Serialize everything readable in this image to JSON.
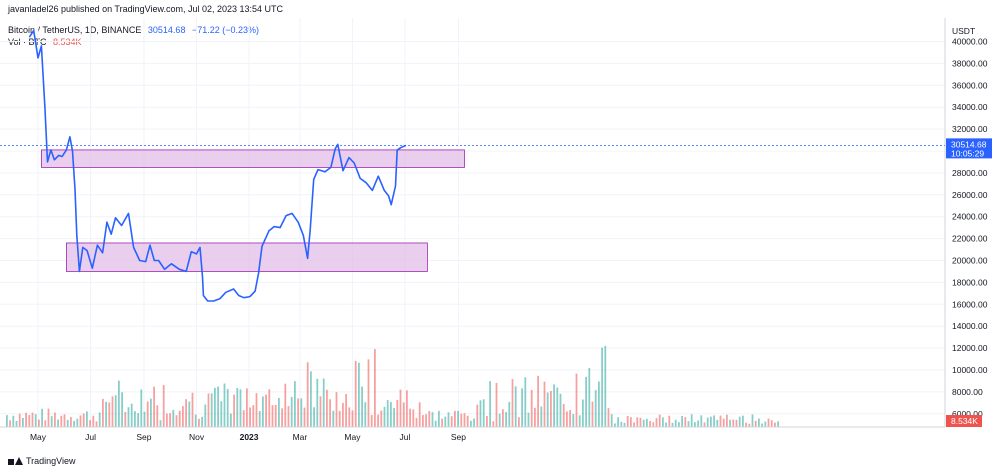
{
  "header": {
    "published": "javanladel26 published on TradingView.com, Jul 02, 2023 13:54 UTC",
    "symbol": "Bitcoin / TetherUS, 1D, BINANCE",
    "price": "30514.68",
    "change": "−71.22 (−0.23%)",
    "volume_label": "Vol · BTC",
    "volume_value": "8.534K"
  },
  "price_tag": {
    "price": "30514.68",
    "countdown": "10:05:29"
  },
  "volume_tag": "8.534K",
  "footer": {
    "brand": "TradingView"
  },
  "colors": {
    "line": "#2962ff",
    "zone_fill": "#e1bee7",
    "zone_border": "#9c27b0",
    "vol_up": "#26a69a",
    "vol_down": "#ef5350",
    "price_tag": "#2962ff",
    "vol_tag": "#ef5350"
  },
  "chart_data": {
    "type": "line",
    "title": "",
    "y_axis": {
      "unit": "USDT",
      "ticks": [
        6000,
        8000,
        10000,
        12000,
        14000,
        16000,
        18000,
        20000,
        22000,
        24000,
        26000,
        28000,
        30000,
        32000,
        34000,
        36000,
        38000,
        40000
      ],
      "range": [
        4000,
        41000
      ]
    },
    "x_axis": {
      "ticks": [
        "May",
        "Jul",
        "Sep",
        "Nov",
        "2023",
        "Mar",
        "May",
        "Jul",
        "Sep"
      ]
    },
    "series": [
      {
        "x": [
          "2022-04-21",
          "2022-04-26",
          "2022-05-01",
          "2022-05-05",
          "2022-05-09",
          "2022-05-12",
          "2022-05-16",
          "2022-05-20",
          "2022-05-25",
          "2022-05-29",
          "2022-06-03",
          "2022-06-07",
          "2022-06-10",
          "2022-06-13",
          "2022-06-15",
          "2022-06-18",
          "2022-06-22",
          "2022-06-27",
          "2022-07-03",
          "2022-07-09",
          "2022-07-15",
          "2022-07-20",
          "2022-07-25",
          "2022-07-30",
          "2022-08-06",
          "2022-08-14",
          "2022-08-20",
          "2022-08-27",
          "2022-09-03",
          "2022-09-08",
          "2022-09-13",
          "2022-09-18",
          "2022-09-25",
          "2022-10-03",
          "2022-10-12",
          "2022-10-20",
          "2022-10-26",
          "2022-11-01",
          "2022-11-05",
          "2022-11-08",
          "2022-11-09",
          "2022-11-14",
          "2022-11-21",
          "2022-11-28",
          "2022-12-05",
          "2022-12-14",
          "2022-12-20",
          "2022-12-26",
          "2023-01-02",
          "2023-01-08",
          "2023-01-12",
          "2023-01-16",
          "2023-01-24",
          "2023-01-30",
          "2023-02-06",
          "2023-02-13",
          "2023-02-20",
          "2023-02-27",
          "2023-03-05",
          "2023-03-10",
          "2023-03-13",
          "2023-03-17",
          "2023-03-22",
          "2023-03-30",
          "2023-04-06",
          "2023-04-11",
          "2023-04-14",
          "2023-04-20",
          "2023-04-27",
          "2023-05-03",
          "2023-05-10",
          "2023-05-17",
          "2023-05-24",
          "2023-05-31",
          "2023-06-07",
          "2023-06-12",
          "2023-06-15",
          "2023-06-20",
          "2023-06-22",
          "2023-06-26",
          "2023-07-02"
        ],
        "y": [
          40400,
          41000,
          38500,
          39600,
          34000,
          29000,
          30100,
          29200,
          29600,
          29500,
          30100,
          31300,
          30000,
          26500,
          22300,
          19000,
          21200,
          20900,
          19300,
          21400,
          20700,
          23500,
          22400,
          23900,
          23200,
          24300,
          21200,
          20000,
          19900,
          21400,
          20000,
          20000,
          19200,
          19700,
          19200,
          19000,
          20800,
          20600,
          21200,
          18500,
          16800,
          16300,
          16300,
          16500,
          17100,
          17400,
          16800,
          16600,
          16700,
          17200,
          18800,
          21300,
          22700,
          23100,
          23000,
          24100,
          24300,
          23500,
          22300,
          20200,
          22800,
          27400,
          28300,
          28100,
          28500,
          30200,
          30600,
          28200,
          29400,
          28900,
          27500,
          27100,
          26400,
          27700,
          26400,
          25900,
          25100,
          26800,
          30100,
          30300,
          30514.68
        ]
      }
    ],
    "zones": [
      {
        "x_start": "2022-05-05",
        "x_end": "2023-09-08",
        "y_low": 28500,
        "y_high": 30100
      },
      {
        "x_start": "2022-06-03",
        "x_end": "2023-07-27",
        "y_low": 19000,
        "y_high": 21600
      }
    ],
    "volume": {
      "label": "Vol · BTC",
      "last": "8.534K"
    }
  }
}
